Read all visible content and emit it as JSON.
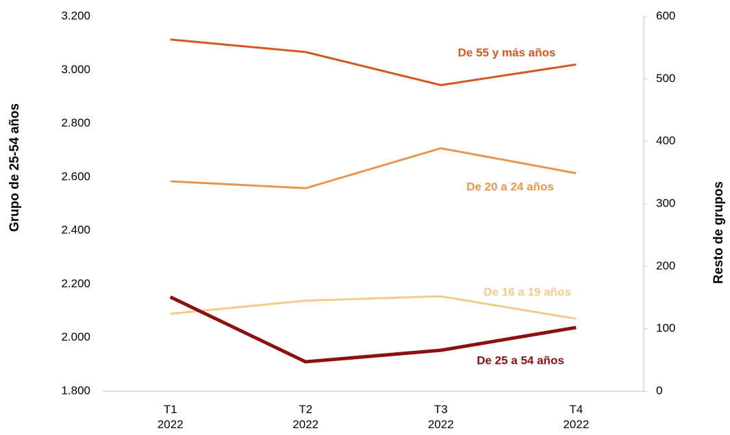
{
  "chart_data": {
    "type": "line",
    "categories": [
      "T1 2022",
      "T2 2022",
      "T3 2022",
      "T4 2022"
    ],
    "ylabel": "Grupo de 25-54 años",
    "y2label": "Resto de grupos",
    "ylim": [
      1800,
      3200
    ],
    "yticks": [
      {
        "value": 1800,
        "label": "1.800"
      },
      {
        "value": 2000,
        "label": "2.000"
      },
      {
        "value": 2200,
        "label": "2.200"
      },
      {
        "value": 2400,
        "label": "2.400"
      },
      {
        "value": 2600,
        "label": "2.600"
      },
      {
        "value": 2800,
        "label": "2.800"
      },
      {
        "value": 3000,
        "label": "3.000"
      },
      {
        "value": 3200,
        "label": "3.200"
      }
    ],
    "y2lim": [
      0,
      600
    ],
    "y2ticks": [
      0,
      100,
      200,
      300,
      400,
      500,
      600
    ],
    "grid": false,
    "series": [
      {
        "name": "De 55 y más años",
        "color": "#d4561c",
        "axis": "y2",
        "values": [
          563,
          543,
          490,
          523
        ]
      },
      {
        "name": "De 20 a 24 años",
        "color": "#e8954e",
        "axis": "y2",
        "values": [
          336,
          325,
          389,
          349
        ]
      },
      {
        "name": "De 16 a 19 años",
        "color": "#f5c98a",
        "axis": "y2",
        "values": [
          124,
          145,
          152,
          116
        ]
      },
      {
        "name": "De 25 a 54 años",
        "color": "#8b1010",
        "values": [
          2152,
          1910,
          1953,
          2038
        ]
      }
    ]
  }
}
